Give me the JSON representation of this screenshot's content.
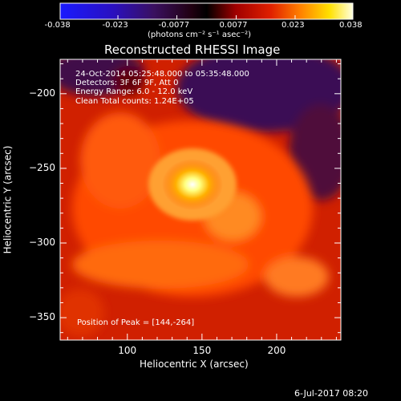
{
  "colorbar": {
    "ticks": [
      "-0.038",
      "-0.023",
      "-0.0077",
      "0.0077",
      "0.023",
      "0.038"
    ],
    "unit_label": "(photons cm⁻² s⁻¹ asec⁻²)",
    "range": [
      -0.038,
      0.038
    ]
  },
  "chart_data": {
    "type": "heatmap",
    "title": "Reconstructed RHESSI Image",
    "xlabel": "Heliocentric X (arcsec)",
    "ylabel": "Heliocentric Y (arcsec)",
    "xlim": [
      55,
      243
    ],
    "ylim": [
      -365,
      -177
    ],
    "x_ticks": [
      100,
      150,
      200
    ],
    "y_ticks": [
      -200,
      -250,
      -300,
      -350
    ],
    "x_tick_labels": [
      "100",
      "150",
      "200"
    ],
    "y_tick_labels": [
      "−200",
      "−250",
      "−300",
      "−350"
    ],
    "colormap": "hot-with-blue-negative",
    "peak": [
      144,
      -264
    ],
    "annotations": {
      "line1": "24-Oct-2014 05:25:48.000 to 05:35:48.000",
      "line2": "Detectors: 3F 6F 9F, Att 0",
      "line3": "Energy Range: 6.0 - 12.0 keV",
      "line4": "Clean    Total counts: 1.24E+05",
      "peak_text": "Position of Peak = [144,-264]"
    }
  },
  "footer": {
    "timestamp": "6-Jul-2017 08:20"
  }
}
